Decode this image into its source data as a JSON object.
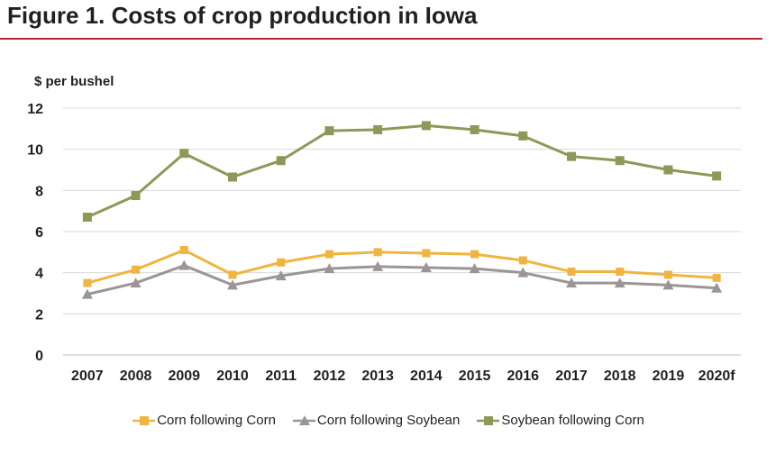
{
  "figure_title": "Figure 1. Costs of crop production in Iowa",
  "colors": {
    "rule": "#b5282e",
    "grid": "#d9d9d9",
    "corn_corn": "#f0b540",
    "corn_soy": "#9c9595",
    "soy_corn": "#8f9858"
  },
  "chart_data": {
    "type": "line",
    "ylabel": "$ per bushel",
    "xlabel": "",
    "ylim": [
      0,
      12
    ],
    "yticks": [
      "0",
      "2",
      "4",
      "6",
      "8",
      "10",
      "12"
    ],
    "categories": [
      "2007",
      "2008",
      "2009",
      "2010",
      "2011",
      "2012",
      "2013",
      "2014",
      "2015",
      "2016",
      "2017",
      "2018",
      "2019",
      "2020f"
    ],
    "grid": true,
    "legend_position": "bottom",
    "series": [
      {
        "name": "Corn following Corn",
        "marker": "square",
        "color": "#f0b540",
        "values": [
          3.5,
          4.15,
          5.1,
          3.9,
          4.5,
          4.9,
          5.0,
          4.95,
          4.9,
          4.6,
          4.05,
          4.05,
          3.9,
          3.75
        ]
      },
      {
        "name": "Corn following Soybean",
        "marker": "triangle",
        "color": "#9c9595",
        "values": [
          2.95,
          3.5,
          4.35,
          3.4,
          3.85,
          4.2,
          4.3,
          4.25,
          4.2,
          4.0,
          3.5,
          3.5,
          3.4,
          3.25
        ]
      },
      {
        "name": "Soybean following Corn",
        "marker": "square",
        "color": "#8f9858",
        "values": [
          6.7,
          7.75,
          9.8,
          8.65,
          9.45,
          10.9,
          10.95,
          11.15,
          10.95,
          10.65,
          9.65,
          9.45,
          9.0,
          8.7
        ]
      }
    ]
  }
}
